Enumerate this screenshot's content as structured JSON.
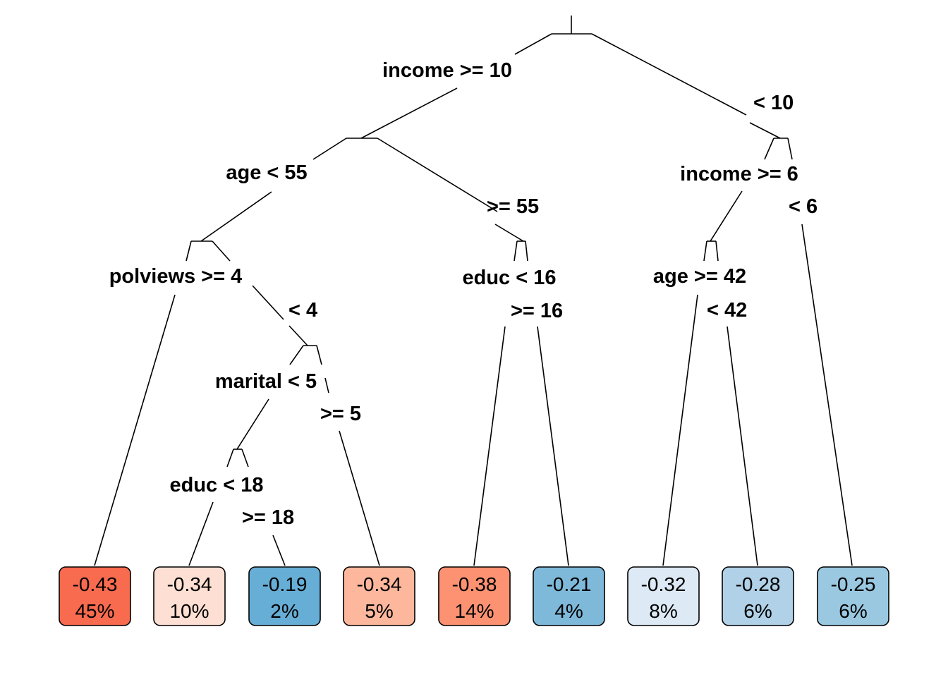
{
  "splits": [
    {
      "id": "root",
      "label": "income >= 10",
      "alt": "< 10"
    },
    {
      "id": "n2",
      "label": "age < 55",
      "alt": ">= 55"
    },
    {
      "id": "n3",
      "label": "income >= 6",
      "alt": "< 6"
    },
    {
      "id": "n4",
      "label": "polviews >= 4",
      "alt": "< 4"
    },
    {
      "id": "n5",
      "label": "educ < 16",
      "alt": ">= 16"
    },
    {
      "id": "n6",
      "label": "age >= 42",
      "alt": "< 42"
    },
    {
      "id": "n9",
      "label": "marital < 5",
      "alt": ">= 5"
    },
    {
      "id": "n18",
      "label": "educ < 18",
      "alt": ">= 18"
    }
  ],
  "leaves": [
    {
      "value": "-0.43",
      "percent": "45%",
      "color": "#f86b4f"
    },
    {
      "value": "-0.34",
      "percent": "10%",
      "color": "#fde0d3"
    },
    {
      "value": "-0.19",
      "percent": "2%",
      "color": "#67aed6"
    },
    {
      "value": "-0.34",
      "percent": "5%",
      "color": "#fcb79c"
    },
    {
      "value": "-0.38",
      "percent": "14%",
      "color": "#fc9272"
    },
    {
      "value": "-0.21",
      "percent": "4%",
      "color": "#7fb9da"
    },
    {
      "value": "-0.32",
      "percent": "8%",
      "color": "#ddeaf5"
    },
    {
      "value": "-0.28",
      "percent": "6%",
      "color": "#b0d1e7"
    },
    {
      "value": "-0.25",
      "percent": "6%",
      "color": "#9ac8e1"
    }
  ]
}
